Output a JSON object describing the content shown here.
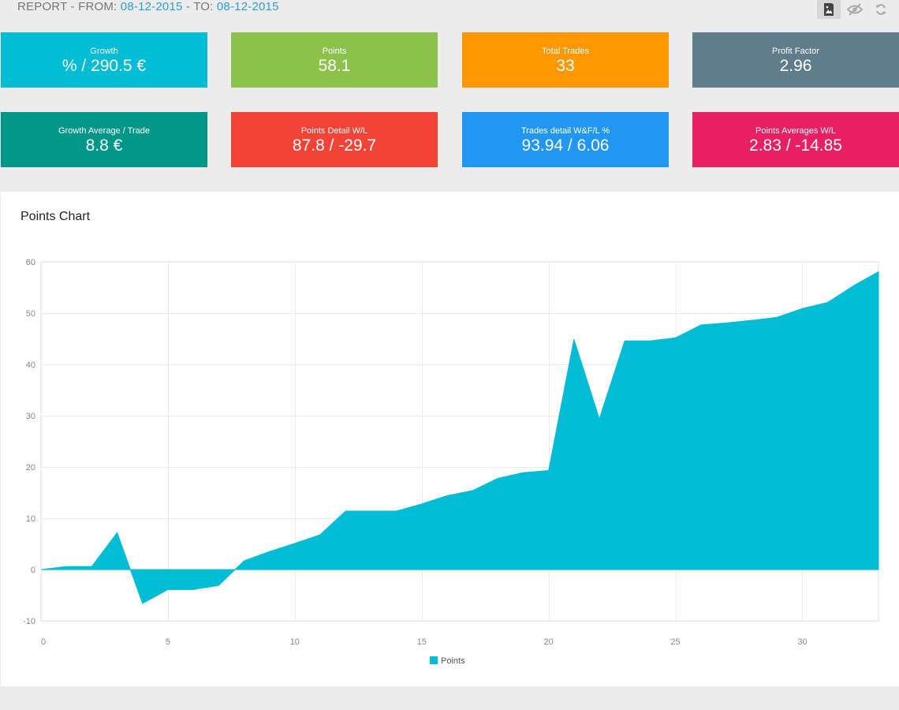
{
  "header": {
    "prefix": "REPORT - FROM: ",
    "from_date": "08-12-2015",
    "middle": " - TO: ",
    "to_date": "08-12-2015"
  },
  "toolbar": {
    "buttons": [
      {
        "icon": "image-icon",
        "active": true
      },
      {
        "icon": "eye-off-icon",
        "active": false
      },
      {
        "icon": "refresh-icon",
        "active": false
      }
    ]
  },
  "cards": [
    {
      "label": "Growth",
      "value": "% / 290.5 €",
      "color": "#00bcd4"
    },
    {
      "label": "Points",
      "value": "58.1",
      "color": "#8bc34a"
    },
    {
      "label": "Total Trades",
      "value": "33",
      "color": "#ff9800"
    },
    {
      "label": "Profit Factor",
      "value": "2.96",
      "color": "#607d8b"
    },
    {
      "label": "Growth Average / Trade",
      "value": "8.8 €",
      "color": "#009688"
    },
    {
      "label": "Points Detail W/L",
      "value": "87.8 / -29.7",
      "color": "#f44336"
    },
    {
      "label": "Trades detail W&F/L %",
      "value": "93.94 / 6.06",
      "color": "#2196f3"
    },
    {
      "label": "Points Averages W/L",
      "value": "2.83 / -14.85",
      "color": "#e91e63"
    }
  ],
  "panel": {
    "title": "Points Chart"
  },
  "chart_data": {
    "type": "area",
    "x": [
      0,
      1,
      2,
      3,
      4,
      5,
      6,
      7,
      8,
      9,
      10,
      11,
      12,
      13,
      14,
      15,
      16,
      17,
      18,
      19,
      20,
      21,
      22,
      23,
      24,
      25,
      26,
      27,
      28,
      29,
      30,
      31,
      32,
      33
    ],
    "series": [
      {
        "name": "Points",
        "color": "#00bcd4",
        "values": [
          0,
          0.6,
          0.6,
          7.2,
          -6.6,
          -3.9,
          -3.9,
          -3.1,
          1.7,
          3.5,
          5.1,
          6.8,
          11.4,
          11.4,
          11.4,
          12.8,
          14.4,
          15.4,
          17.8,
          18.9,
          19.3,
          44.9,
          29.4,
          44.6,
          44.6,
          45.2,
          47.7,
          48.1,
          48.6,
          49.2,
          50.9,
          52.1,
          55.3,
          58.1
        ]
      }
    ],
    "xlim": [
      0,
      33
    ],
    "ylim": [
      -10,
      60
    ],
    "x_ticks": [
      0,
      5,
      10,
      15,
      20,
      25,
      30
    ],
    "y_ticks": [
      -10,
      0,
      10,
      20,
      30,
      40,
      50,
      60
    ],
    "grid": true,
    "legend_position": "bottom-center"
  }
}
